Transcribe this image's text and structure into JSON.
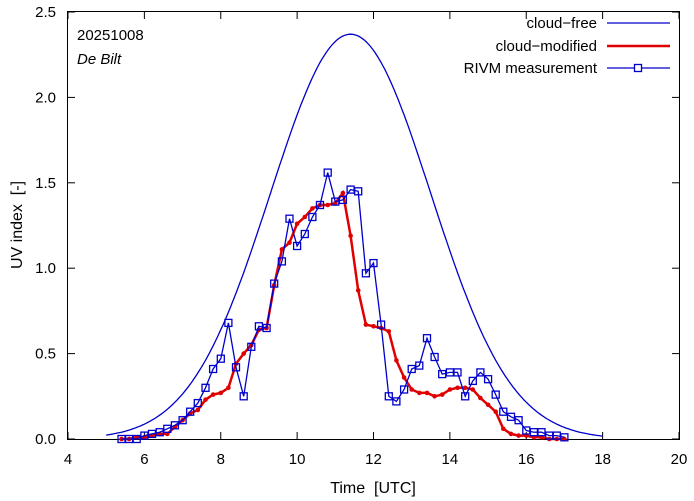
{
  "chart_data": {
    "type": "line",
    "title": "",
    "annotations": {
      "date": "20251008",
      "location": "De Bilt"
    },
    "xlabel": "Time  [UTC]",
    "ylabel": "UV index  [-]",
    "xlim": [
      4,
      20
    ],
    "ylim": [
      0,
      2.5
    ],
    "xticks": [
      4,
      6,
      8,
      10,
      12,
      14,
      16,
      18,
      20
    ],
    "yticks": [
      0.0,
      0.5,
      1.0,
      1.5,
      2.0,
      2.5
    ],
    "ytick_labels": [
      "0.0",
      "0.5",
      "1.0",
      "1.5",
      "2.0",
      "2.5"
    ],
    "legend_position": "top-right",
    "series": [
      {
        "name": "cloud−free",
        "color": "#0000cc",
        "style": "line",
        "curve": {
          "kind": "gaussian",
          "peak": 2.37,
          "center": 11.4,
          "sigma": 2.1,
          "start": 5.0,
          "end": 18.0
        }
      },
      {
        "name": "cloud−modified",
        "color": "#e00000",
        "style": "line-dots",
        "x": [
          5.4,
          5.6,
          5.8,
          6.0,
          6.2,
          6.4,
          6.6,
          6.8,
          7.0,
          7.2,
          7.4,
          7.6,
          7.8,
          8.0,
          8.2,
          8.4,
          8.6,
          8.8,
          9.0,
          9.2,
          9.4,
          9.6,
          9.8,
          10.0,
          10.2,
          10.4,
          10.6,
          10.8,
          11.0,
          11.2,
          11.4,
          11.6,
          11.8,
          12.0,
          12.2,
          12.4,
          12.6,
          12.8,
          13.0,
          13.2,
          13.4,
          13.6,
          13.8,
          14.0,
          14.2,
          14.4,
          14.6,
          14.8,
          15.0,
          15.2,
          15.4,
          15.6,
          15.8,
          16.0,
          16.2,
          16.4,
          16.6,
          16.8,
          17.0
        ],
        "values": [
          0.0,
          0.0,
          0.01,
          0.01,
          0.02,
          0.03,
          0.03,
          0.07,
          0.11,
          0.15,
          0.17,
          0.23,
          0.26,
          0.27,
          0.3,
          0.44,
          0.5,
          0.55,
          0.64,
          0.65,
          0.9,
          1.11,
          1.15,
          1.26,
          1.3,
          1.35,
          1.37,
          1.37,
          1.38,
          1.44,
          1.19,
          0.87,
          0.67,
          0.66,
          0.65,
          0.63,
          0.46,
          0.36,
          0.29,
          0.27,
          0.27,
          0.25,
          0.26,
          0.29,
          0.3,
          0.3,
          0.29,
          0.24,
          0.2,
          0.16,
          0.06,
          0.03,
          0.02,
          0.02,
          0.01,
          0.01,
          0.0,
          0.0,
          0.0
        ]
      },
      {
        "name": "RIVM measurement",
        "color": "#0000cc",
        "style": "line-squares",
        "x": [
          5.4,
          5.6,
          5.8,
          6.0,
          6.2,
          6.4,
          6.6,
          6.8,
          7.0,
          7.2,
          7.4,
          7.6,
          7.8,
          8.0,
          8.2,
          8.4,
          8.6,
          8.8,
          9.0,
          9.2,
          9.4,
          9.6,
          9.8,
          10.0,
          10.2,
          10.4,
          10.6,
          10.8,
          11.0,
          11.2,
          11.4,
          11.6,
          11.8,
          12.0,
          12.2,
          12.4,
          12.6,
          12.8,
          13.0,
          13.2,
          13.4,
          13.6,
          13.8,
          14.0,
          14.2,
          14.4,
          14.6,
          14.8,
          15.0,
          15.2,
          15.4,
          15.6,
          15.8,
          16.0,
          16.2,
          16.4,
          16.6,
          16.8,
          17.0
        ],
        "values": [
          0.0,
          0.0,
          0.0,
          0.02,
          0.03,
          0.04,
          0.06,
          0.08,
          0.11,
          0.16,
          0.21,
          0.3,
          0.41,
          0.47,
          0.68,
          0.42,
          0.25,
          0.54,
          0.66,
          0.65,
          0.91,
          1.04,
          1.29,
          1.13,
          1.2,
          1.3,
          1.37,
          1.56,
          1.39,
          1.4,
          1.46,
          1.45,
          0.97,
          1.03,
          0.67,
          0.25,
          0.22,
          0.29,
          0.41,
          0.43,
          0.59,
          0.48,
          0.38,
          0.39,
          0.39,
          0.25,
          0.34,
          0.39,
          0.35,
          0.26,
          0.16,
          0.13,
          0.11,
          0.05,
          0.04,
          0.04,
          0.02,
          0.02,
          0.01
        ]
      }
    ]
  }
}
